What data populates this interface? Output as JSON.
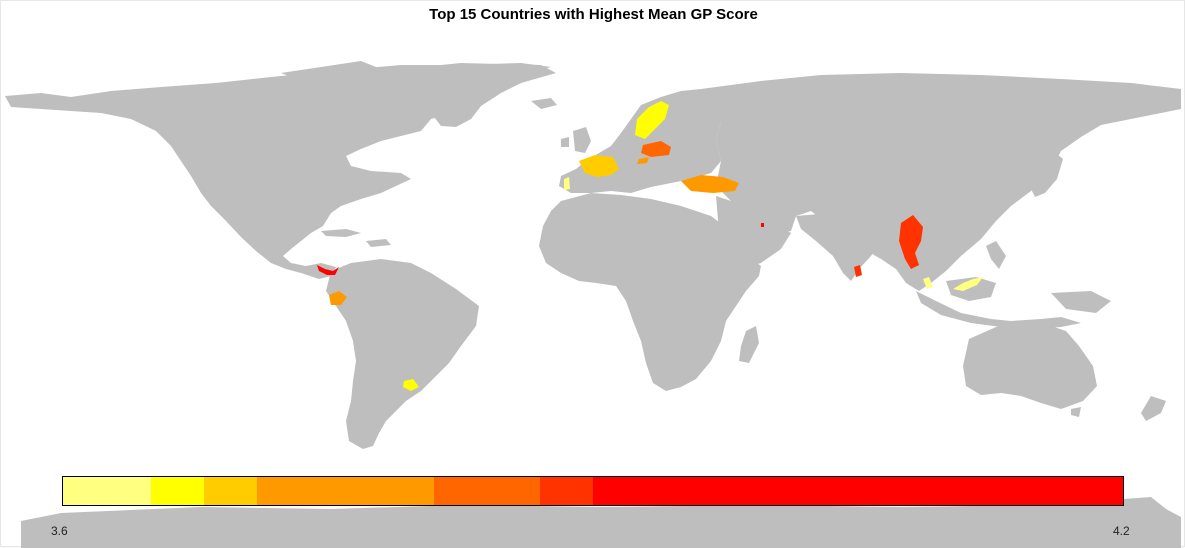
{
  "title": "Top 15 Countries with Highest Mean GP Score",
  "legend": {
    "min_label": "3.6",
    "max_label": "4.2",
    "min": 3.6,
    "max": 4.2,
    "bins": [
      {
        "from": 3.6,
        "to": 3.65,
        "color": "#ffff80"
      },
      {
        "from": 3.65,
        "to": 3.68,
        "color": "#ffff00"
      },
      {
        "from": 3.68,
        "to": 3.71,
        "color": "#ffcc00"
      },
      {
        "from": 3.71,
        "to": 3.81,
        "color": "#ff9900"
      },
      {
        "from": 3.81,
        "to": 3.87,
        "color": "#ff6600"
      },
      {
        "from": 3.87,
        "to": 3.9,
        "color": "#ff3300"
      },
      {
        "from": 3.9,
        "to": 4.2,
        "color": "#ff0000"
      }
    ]
  },
  "colors": {
    "land": "#bebebe",
    "background": "#ffffff"
  },
  "highlighted_regions": [
    {
      "id": "sweden",
      "color": "#ffff00"
    },
    {
      "id": "poland",
      "color": "#ff6600"
    },
    {
      "id": "hungary",
      "color": "#ff9900"
    },
    {
      "id": "france",
      "color": "#ffcc00"
    },
    {
      "id": "portugal",
      "color": "#ffff80"
    },
    {
      "id": "turkey",
      "color": "#ff9900"
    },
    {
      "id": "qatar",
      "color": "#ff0000"
    },
    {
      "id": "myanmar",
      "color": "#ff3300"
    },
    {
      "id": "sri-lanka",
      "color": "#ff3300"
    },
    {
      "id": "malaysia-peninsula",
      "color": "#ffff80"
    },
    {
      "id": "malaysia-borneo",
      "color": "#ffff80"
    },
    {
      "id": "costa-rica-panama",
      "color": "#ff0000"
    },
    {
      "id": "ecuador",
      "color": "#ff9900"
    },
    {
      "id": "uruguay",
      "color": "#ffff00"
    }
  ]
}
